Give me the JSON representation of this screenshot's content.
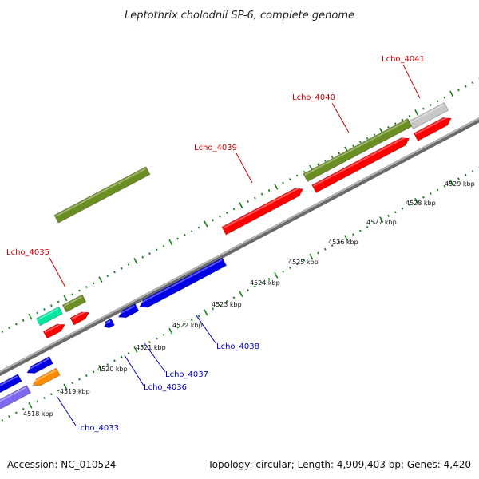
{
  "title": "Leptothrix cholodnii SP-6, complete genome",
  "footer": {
    "accession": "Accession: NC_010524",
    "summary": "Topology: circular; Length: 4,909,403 bp; Genes: 4,420"
  },
  "colors": {
    "backbone": "#8c8c8c",
    "tick": "#1a7a1a",
    "label_forward": "#cc0000",
    "label_reverse": "#0000cc"
  },
  "scale": {
    "unit": "kbp",
    "positions": [
      "4518 kbp",
      "4519 kbp",
      "4520 kbp",
      "4521 kbp",
      "4522 kbp",
      "4523 kbp",
      "4524 kbp",
      "4525 kbp",
      "4526 kbp",
      "4527 kbp",
      "4528 kbp",
      "4529 kbp"
    ]
  },
  "gene_labels": {
    "forward": [
      "Lcho_4035",
      "Lcho_4039",
      "Lcho_4040",
      "Lcho_4041"
    ],
    "reverse": [
      "Lcho_4033",
      "Lcho_4036",
      "Lcho_4037",
      "Lcho_4038"
    ]
  },
  "gene_colors": {
    "green": "#6b8e23",
    "red": "#ff0000",
    "grey": "#c8c8c8",
    "blue": "#0000e6",
    "teal": "#00e6a0",
    "orange": "#ff8c00",
    "lavender": "#7b68ee"
  }
}
